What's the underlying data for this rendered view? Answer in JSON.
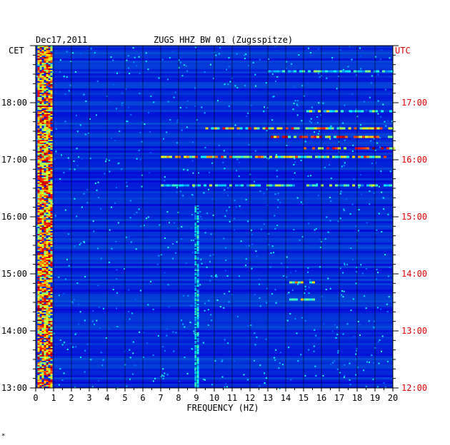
{
  "header": {
    "date": "Dec17,2011",
    "station": "ZUGS HHZ BW 01 (Zugsspitze)",
    "left_tz": "CET",
    "right_tz": "UTC"
  },
  "colors": {
    "plot_bg": "#0a1aa8",
    "utc_red": "#e00000",
    "axis_black": "#000000"
  },
  "footer_mark": "*",
  "chart_data": {
    "type": "heatmap",
    "title": "ZUGS HHZ BW 01 (Zugsspitze)",
    "xlabel": "FREQUENCY (HZ)",
    "xlim": [
      0,
      20
    ],
    "x_ticks": [
      "0",
      "1",
      "2",
      "3",
      "4",
      "5",
      "6",
      "7",
      "8",
      "9",
      "10",
      "11",
      "12",
      "13",
      "14",
      "15",
      "16",
      "17",
      "18",
      "19",
      "20"
    ],
    "y_left_label": "CET",
    "y_right_label": "UTC",
    "ylim_cet_hours": [
      13,
      19
    ],
    "y_left_ticks": [
      "18:00",
      "17:00",
      "16:00",
      "15:00",
      "14:00",
      "13:00"
    ],
    "y_right_ticks": [
      "17:00",
      "16:00",
      "15:00",
      "14:00",
      "13:00",
      "12:00"
    ],
    "grid": true,
    "features": [
      {
        "desc": "persistent low-frequency energy",
        "freq_range": [
          0.1,
          0.9
        ],
        "time_range_cet": [
          13.0,
          19.0
        ],
        "intensity": 0.85
      },
      {
        "desc": "strong band",
        "freq_range": [
          9.5,
          20
        ],
        "time_cet": 17.55,
        "intensity": 0.75
      },
      {
        "desc": "strong band",
        "freq_range": [
          13.0,
          20
        ],
        "time_cet": 17.4,
        "intensity": 0.8
      },
      {
        "desc": "strong band",
        "freq_range": [
          15.0,
          20
        ],
        "time_cet": 17.2,
        "intensity": 0.85
      },
      {
        "desc": "band",
        "freq_range": [
          7.0,
          20
        ],
        "time_cet": 17.05,
        "intensity": 0.7
      },
      {
        "desc": "band",
        "freq_range": [
          7.0,
          20
        ],
        "time_cet": 16.55,
        "intensity": 0.5
      },
      {
        "desc": "band",
        "freq_range": [
          13.0,
          20
        ],
        "time_cet": 18.55,
        "intensity": 0.45
      },
      {
        "desc": "band",
        "freq_range": [
          15.0,
          20
        ],
        "time_cet": 17.85,
        "intensity": 0.55
      },
      {
        "desc": "burst",
        "freq_range": [
          14.2,
          15.5
        ],
        "time_cet": 14.85,
        "intensity": 0.7
      },
      {
        "desc": "burst",
        "freq_range": [
          14.2,
          15.5
        ],
        "time_cet": 14.55,
        "intensity": 0.6
      },
      {
        "desc": "line",
        "freq_range": [
          8.9,
          9.1
        ],
        "time_range_cet": [
          13.0,
          16.2
        ],
        "intensity": 0.4
      }
    ]
  }
}
